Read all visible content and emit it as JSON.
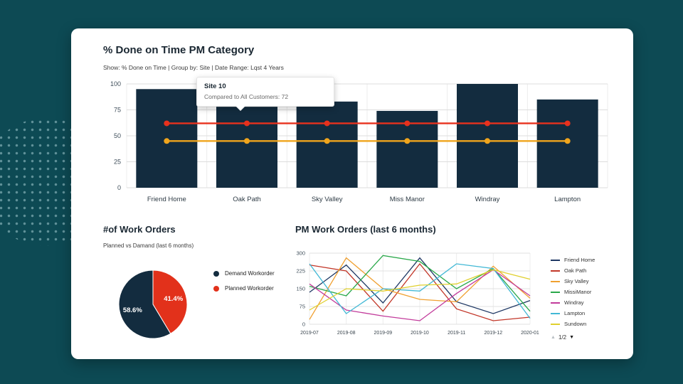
{
  "page": {
    "background_color": "#0d4a54"
  },
  "bar_chart": {
    "title": "% Done on Time PM Category",
    "filters": "Show: % Done on Time | Group by: Site | Date Range: Lqst 4 Years"
  },
  "tooltip": {
    "title": "Site 10",
    "text": "Compared to All Customers: 72"
  },
  "pie_chart": {
    "title": "#of Work Orders",
    "subtitle": "Planned vs Damand (last 6 months)"
  },
  "line_chart": {
    "title": "PM Work Orders (last 6 months)",
    "pagination": "1/2"
  },
  "chart_data": [
    {
      "type": "bar",
      "title": "% Done on Time PM Category",
      "categories": [
        "Friend Home",
        "Oak Path",
        "Sky Valley",
        "Miss Manor",
        "Windray",
        "Lampton"
      ],
      "values": [
        95,
        78,
        83,
        74,
        100,
        85
      ],
      "ylim": [
        0,
        100
      ],
      "yticks": [
        0,
        25,
        50,
        75,
        100
      ],
      "bar_color": "#132c3f",
      "grid": true,
      "overlay_lines": [
        {
          "color": "#e8311d",
          "values": [
            62,
            62,
            62,
            62,
            62,
            62
          ]
        },
        {
          "color": "#f0a51d",
          "values": [
            45,
            45,
            45,
            45,
            45,
            45
          ]
        }
      ]
    },
    {
      "type": "pie",
      "title": "#of Work Orders",
      "subtitle": "Planned vs Damand (last 6 months)",
      "slices": [
        {
          "label": "Demand Workorder",
          "value": 58.6,
          "display": "58.6%",
          "color": "#132c3f"
        },
        {
          "label": "Planned Workorder",
          "value": 41.4,
          "display": "41.4%",
          "color": "#e2311b"
        }
      ],
      "legend_position": "right"
    },
    {
      "type": "line",
      "title": "PM Work Orders (last 6 months)",
      "x": [
        "2019-07",
        "2019-08",
        "2019-09",
        "2019-10",
        "2019-11",
        "2019-12",
        "2020-01"
      ],
      "ylim": [
        0,
        300
      ],
      "yticks": [
        0,
        75,
        150,
        225,
        300
      ],
      "grid": true,
      "legend_position": "right",
      "series": [
        {
          "name": "Friend Home",
          "color": "#1f3864",
          "values": [
            135,
            250,
            90,
            280,
            95,
            45,
            100
          ]
        },
        {
          "name": "Oak Path",
          "color": "#c23628",
          "values": [
            250,
            225,
            55,
            255,
            65,
            15,
            30
          ]
        },
        {
          "name": "Sky Valley",
          "color": "#f0a030",
          "values": [
            20,
            280,
            150,
            105,
            95,
            245,
            110
          ]
        },
        {
          "name": "MissiManor",
          "color": "#2aa84a",
          "values": [
            160,
            120,
            290,
            265,
            150,
            235,
            55
          ]
        },
        {
          "name": "Windray",
          "color": "#c23b9b",
          "values": [
            170,
            60,
            35,
            15,
            130,
            230,
            120
          ]
        },
        {
          "name": "Lampton",
          "color": "#41b8d5",
          "values": [
            255,
            45,
            150,
            140,
            255,
            235,
            25
          ]
        },
        {
          "name": "Sundown",
          "color": "#e0d02e",
          "values": [
            60,
            150,
            140,
            165,
            170,
            230,
            190
          ]
        }
      ]
    }
  ]
}
